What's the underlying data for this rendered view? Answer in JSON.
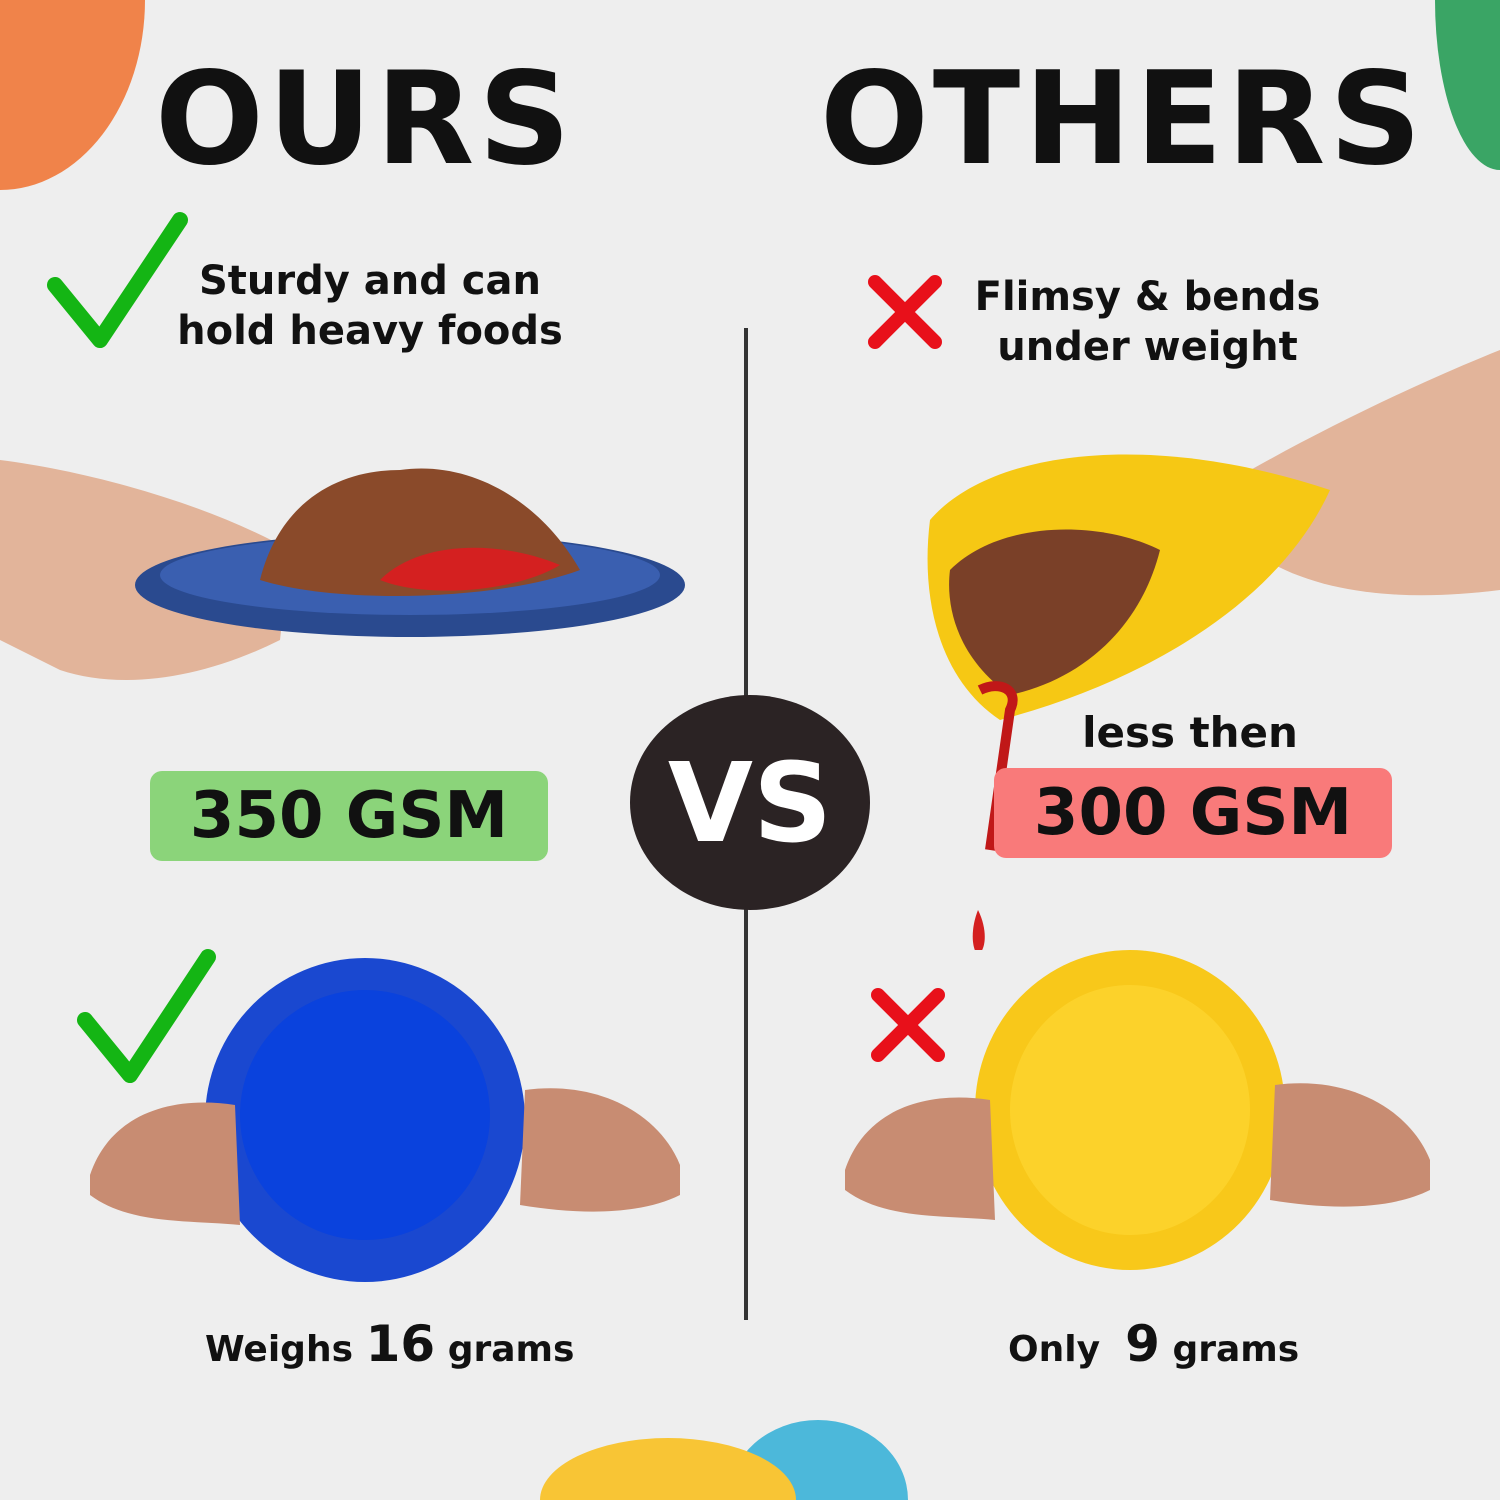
{
  "colors": {
    "background": "#eeeeee",
    "orange": "#f0834a",
    "green": "#3aa565",
    "yellow": "#f8c535",
    "blue": "#4cb8da",
    "good_badge": "#8bd47a",
    "bad_badge": "#f97a7a",
    "check": "#14b514",
    "cross": "#e8101a",
    "vs_circle": "#2b2324"
  },
  "left": {
    "title": "OURS",
    "claim_line1": "Sturdy and can",
    "claim_line2": "hold heavy foods",
    "gsm": "350 GSM",
    "weight_prefix": "Weighs",
    "weight_value": "16",
    "weight_unit": "grams",
    "icon": "check-icon"
  },
  "right": {
    "title": "OTHERS",
    "claim_line1": "Flimsy & bends",
    "claim_line2": "under weight",
    "gsm_prefix": "less then",
    "gsm": "300 GSM",
    "weight_prefix": "Only",
    "weight_value": "9",
    "weight_unit": "grams",
    "icon": "cross-icon"
  },
  "vs": "VS"
}
